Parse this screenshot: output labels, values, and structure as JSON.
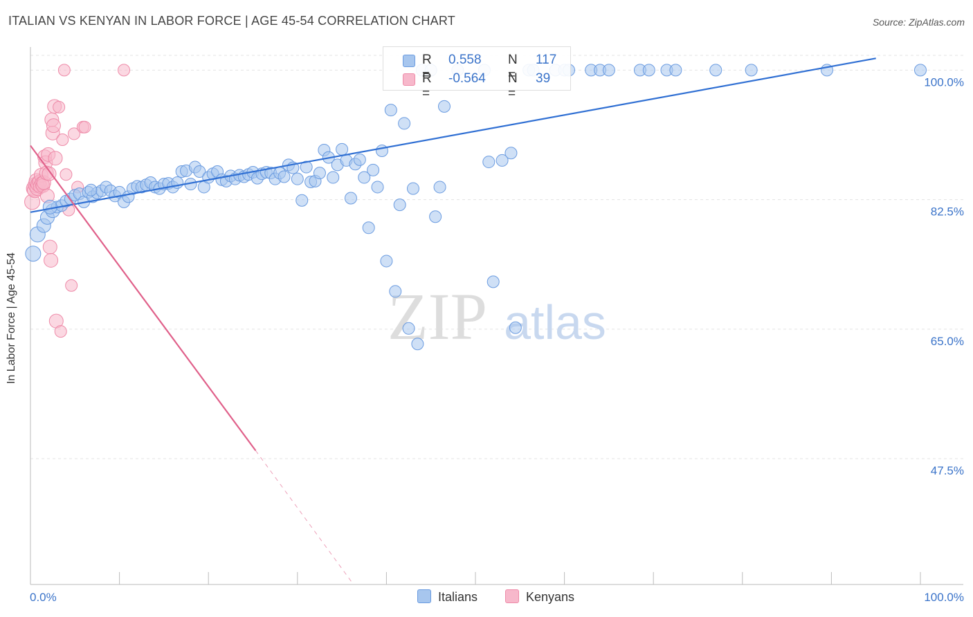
{
  "title": "ITALIAN VS KENYAN IN LABOR FORCE | AGE 45-54 CORRELATION CHART",
  "source": "Source: ZipAtlas.com",
  "watermark": {
    "zip": "ZIP",
    "atlas": "atlas"
  },
  "legend": {
    "rows": [
      {
        "r_label": "R =",
        "r_value": "0.558",
        "n_label": "N =",
        "n_value": "117"
      },
      {
        "r_label": "R =",
        "r_value": "-0.564",
        "n_label": "N =",
        "n_value": "39"
      }
    ]
  },
  "bottom_legend": {
    "italians": "Italians",
    "kenyans": "Kenyans"
  },
  "colors": {
    "blue_fill": "#a7c6ee",
    "blue_stroke": "#6a9be0",
    "blue_line": "#2f6fd3",
    "pink_fill": "#f7b8cb",
    "pink_stroke": "#ee8aa8",
    "pink_line": "#e0608a",
    "axis_text": "#3a73c9"
  },
  "chart_data": {
    "type": "scatter",
    "title": "ITALIAN VS KENYAN IN LABOR FORCE | AGE 45-54 CORRELATION CHART",
    "xlabel": "",
    "ylabel": "In Labor Force | Age 45-54",
    "xlim": [
      0,
      100
    ],
    "ylim": [
      30.5,
      102
    ],
    "x_tick_labels": [
      "0.0%",
      "100.0%"
    ],
    "y_ticks": [
      47.5,
      65.0,
      82.5,
      100.0
    ],
    "y_tick_labels": [
      "47.5%",
      "65.0%",
      "82.5%",
      "100.0%"
    ],
    "series": [
      {
        "name": "Italians",
        "r": 0.558,
        "n": 117,
        "trend": {
          "x": [
            0,
            95
          ],
          "y": [
            80.8,
            101.6
          ]
        },
        "points": [
          [
            0.3,
            75.2
          ],
          [
            0.8,
            77.8
          ],
          [
            1.5,
            79.0
          ],
          [
            1.9,
            80.1
          ],
          [
            2.5,
            81.0
          ],
          [
            3.0,
            81.5
          ],
          [
            3.5,
            81.7
          ],
          [
            4.0,
            82.3
          ],
          [
            4.5,
            82.6
          ],
          [
            5.0,
            83.1
          ],
          [
            5.5,
            83.3
          ],
          [
            6.0,
            82.2
          ],
          [
            6.5,
            83.5
          ],
          [
            7.0,
            82.9
          ],
          [
            7.5,
            83.4
          ],
          [
            8.0,
            83.7
          ],
          [
            8.5,
            84.2
          ],
          [
            9.0,
            83.7
          ],
          [
            9.5,
            83.0
          ],
          [
            10.0,
            83.5
          ],
          [
            10.5,
            82.2
          ],
          [
            11.0,
            82.9
          ],
          [
            11.5,
            84.0
          ],
          [
            12.0,
            84.3
          ],
          [
            12.5,
            84.2
          ],
          [
            13.0,
            84.5
          ],
          [
            13.5,
            84.8
          ],
          [
            14.0,
            84.2
          ],
          [
            14.5,
            84.0
          ],
          [
            15.0,
            84.6
          ],
          [
            15.5,
            84.7
          ],
          [
            16.0,
            84.2
          ],
          [
            16.5,
            84.8
          ],
          [
            17.0,
            86.3
          ],
          [
            17.5,
            86.4
          ],
          [
            18.0,
            84.6
          ],
          [
            18.5,
            86.9
          ],
          [
            19.0,
            86.3
          ],
          [
            19.5,
            84.2
          ],
          [
            20.0,
            85.5
          ],
          [
            20.5,
            86.0
          ],
          [
            21.0,
            86.3
          ],
          [
            21.5,
            85.2
          ],
          [
            22.0,
            85.0
          ],
          [
            22.5,
            85.7
          ],
          [
            23.0,
            85.3
          ],
          [
            23.5,
            85.8
          ],
          [
            24.0,
            85.6
          ],
          [
            24.5,
            85.9
          ],
          [
            25.0,
            86.2
          ],
          [
            25.5,
            85.4
          ],
          [
            26.0,
            86.0
          ],
          [
            26.5,
            86.2
          ],
          [
            27.0,
            86.1
          ],
          [
            27.5,
            85.3
          ],
          [
            28.0,
            86.1
          ],
          [
            28.5,
            85.6
          ],
          [
            29.0,
            87.2
          ],
          [
            29.5,
            86.8
          ],
          [
            30.0,
            85.3
          ],
          [
            30.5,
            82.4
          ],
          [
            31.0,
            86.9
          ],
          [
            31.5,
            84.9
          ],
          [
            32.0,
            85.0
          ],
          [
            32.5,
            86.1
          ],
          [
            33.0,
            89.2
          ],
          [
            33.5,
            88.2
          ],
          [
            34.0,
            85.5
          ],
          [
            34.5,
            87.2
          ],
          [
            35.0,
            89.3
          ],
          [
            35.5,
            87.8
          ],
          [
            36.0,
            82.7
          ],
          [
            36.5,
            87.3
          ],
          [
            37.0,
            87.9
          ],
          [
            37.5,
            85.5
          ],
          [
            38.0,
            78.7
          ],
          [
            38.5,
            86.5
          ],
          [
            39.0,
            84.2
          ],
          [
            39.5,
            89.1
          ],
          [
            40.0,
            74.2
          ],
          [
            40.5,
            94.6
          ],
          [
            41.0,
            70.1
          ],
          [
            41.5,
            81.8
          ],
          [
            42.0,
            92.8
          ],
          [
            42.5,
            65.1
          ],
          [
            43.0,
            84.0
          ],
          [
            43.5,
            63.0
          ],
          [
            44.0,
            100.0
          ],
          [
            45.0,
            100.0
          ],
          [
            45.5,
            80.2
          ],
          [
            46.0,
            84.2
          ],
          [
            46.5,
            95.1
          ],
          [
            48.0,
            100.0
          ],
          [
            51.0,
            100.0
          ],
          [
            51.5,
            87.6
          ],
          [
            52.0,
            71.4
          ],
          [
            53.0,
            87.8
          ],
          [
            54.0,
            88.8
          ],
          [
            54.5,
            65.2
          ],
          [
            56.0,
            100.0
          ],
          [
            56.5,
            100.0
          ],
          [
            59.0,
            100.0
          ],
          [
            60.0,
            100.0
          ],
          [
            60.5,
            100.0
          ],
          [
            63.0,
            100.0
          ],
          [
            64.0,
            100.0
          ],
          [
            65.0,
            100.0
          ],
          [
            68.5,
            100.0
          ],
          [
            69.5,
            100.0
          ],
          [
            71.5,
            100.0
          ],
          [
            72.5,
            100.0
          ],
          [
            77.0,
            100.0
          ],
          [
            81.0,
            100.0
          ],
          [
            89.5,
            100.0
          ],
          [
            100.0,
            100.0
          ],
          [
            2.2,
            81.5
          ],
          [
            6.8,
            83.8
          ]
        ]
      },
      {
        "name": "Kenyans",
        "r": -0.564,
        "n": 39,
        "trend": {
          "x": [
            0,
            25.3
          ],
          "y": [
            89.8,
            48.6
          ]
        },
        "trend_extended": {
          "x": [
            25.3,
            36.3
          ],
          "y": [
            48.6,
            30.5
          ]
        },
        "points": [
          [
            0.2,
            82.2
          ],
          [
            0.4,
            84.0
          ],
          [
            0.5,
            83.8
          ],
          [
            0.6,
            84.5
          ],
          [
            0.7,
            85.0
          ],
          [
            0.8,
            84.1
          ],
          [
            0.9,
            84.6
          ],
          [
            1.0,
            84.9
          ],
          [
            1.1,
            84.3
          ],
          [
            1.2,
            85.8
          ],
          [
            1.3,
            84.7
          ],
          [
            1.4,
            84.4
          ],
          [
            1.5,
            84.8
          ],
          [
            1.6,
            88.3
          ],
          [
            1.7,
            87.5
          ],
          [
            1.8,
            86.1
          ],
          [
            1.9,
            83.0
          ],
          [
            2.0,
            88.6
          ],
          [
            2.1,
            86.0
          ],
          [
            2.2,
            76.1
          ],
          [
            2.3,
            74.3
          ],
          [
            2.4,
            93.3
          ],
          [
            2.5,
            91.5
          ],
          [
            2.6,
            92.5
          ],
          [
            2.7,
            95.1
          ],
          [
            2.8,
            88.1
          ],
          [
            2.9,
            66.1
          ],
          [
            3.2,
            95.0
          ],
          [
            3.4,
            64.7
          ],
          [
            3.6,
            90.6
          ],
          [
            4.0,
            85.9
          ],
          [
            4.3,
            81.1
          ],
          [
            4.6,
            70.9
          ],
          [
            4.9,
            91.4
          ],
          [
            5.3,
            84.2
          ],
          [
            5.9,
            92.3
          ],
          [
            6.1,
            92.3
          ],
          [
            3.8,
            100.0
          ],
          [
            10.5,
            100.0
          ]
        ]
      }
    ]
  }
}
